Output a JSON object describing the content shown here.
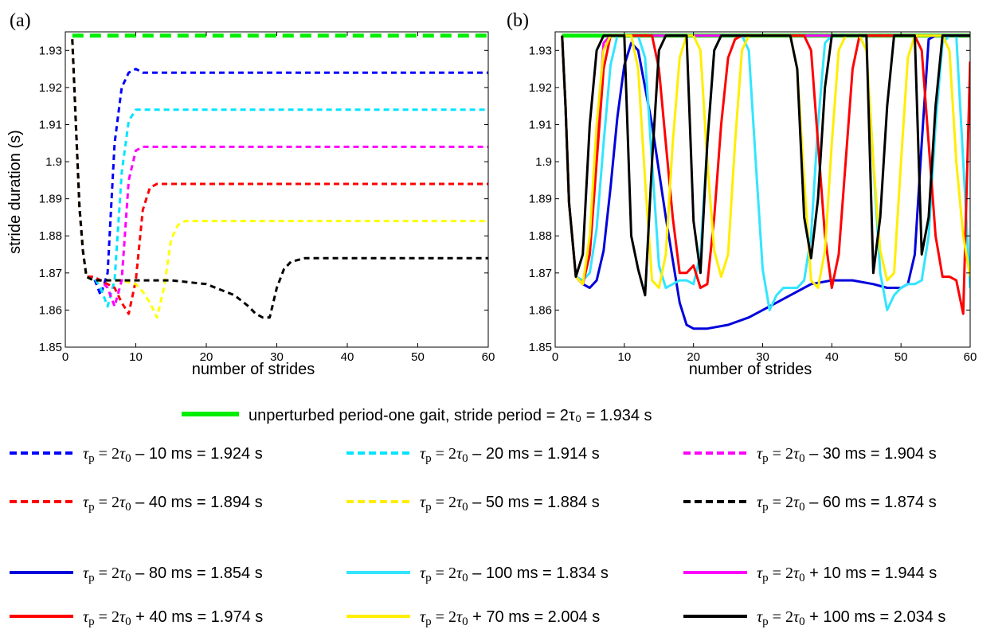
{
  "chart_data": [
    {
      "panel_label": "(a)",
      "type": "line",
      "xlabel": "number of strides",
      "ylabel": "stride duration (s)",
      "xlim": [
        0,
        60
      ],
      "ylim": [
        1.85,
        1.935
      ],
      "xticks": [
        0,
        10,
        20,
        30,
        40,
        50,
        60
      ],
      "yticks": [
        1.85,
        1.86,
        1.87,
        1.88,
        1.89,
        1.9,
        1.91,
        1.92,
        1.93
      ],
      "grid": false,
      "series": [
        {
          "name": "unperturbed period-one gait",
          "color": "#00ee00",
          "style": "dashed",
          "x": [
            1,
            60
          ],
          "y": [
            1.934,
            1.934
          ]
        },
        {
          "name": "τp = 2τ0 – 10 ms = 1.924 s",
          "color": "#0000ff",
          "style": "dashed",
          "x": [
            1,
            1.5,
            2,
            2.5,
            3,
            4,
            5,
            6,
            7,
            8,
            9,
            10,
            11,
            60
          ],
          "y": [
            1.933,
            1.91,
            1.888,
            1.876,
            1.869,
            1.869,
            1.864,
            1.87,
            1.905,
            1.92,
            1.924,
            1.925,
            1.924,
            1.924
          ]
        },
        {
          "name": "τp = 2τ0 – 20 ms = 1.914 s",
          "color": "#00e5ff",
          "style": "dashed",
          "x": [
            1,
            1.5,
            2,
            2.5,
            3,
            4,
            5,
            6,
            7,
            8,
            9,
            10,
            11,
            60
          ],
          "y": [
            1.933,
            1.91,
            1.888,
            1.876,
            1.869,
            1.869,
            1.866,
            1.861,
            1.868,
            1.897,
            1.911,
            1.914,
            1.914,
            1.914
          ]
        },
        {
          "name": "τp = 2τ0 – 30 ms = 1.904 s",
          "color": "#ff00ff",
          "style": "dashed",
          "x": [
            1,
            1.5,
            2,
            2.5,
            3,
            4,
            5,
            6,
            7,
            8,
            9,
            10,
            11,
            60
          ],
          "y": [
            1.933,
            1.91,
            1.888,
            1.876,
            1.869,
            1.869,
            1.868,
            1.866,
            1.861,
            1.868,
            1.895,
            1.903,
            1.904,
            1.904
          ]
        },
        {
          "name": "τp = 2τ0 – 40 ms = 1.894 s",
          "color": "#ff0000",
          "style": "dashed",
          "x": [
            1,
            1.5,
            2,
            2.5,
            3,
            4,
            5,
            6,
            7,
            8,
            9,
            10,
            11,
            12,
            13,
            60
          ],
          "y": [
            1.933,
            1.91,
            1.888,
            1.876,
            1.869,
            1.869,
            1.868,
            1.867,
            1.866,
            1.862,
            1.859,
            1.868,
            1.887,
            1.893,
            1.894,
            1.894
          ]
        },
        {
          "name": "τp = 2τ0 – 50 ms = 1.884 s",
          "color": "#ffff00",
          "style": "dashed",
          "x": [
            1,
            1.5,
            2,
            2.5,
            3,
            4,
            6,
            8,
            10,
            11,
            12,
            13,
            14,
            15,
            16,
            17,
            60
          ],
          "y": [
            1.933,
            1.91,
            1.888,
            1.876,
            1.869,
            1.868,
            1.868,
            1.868,
            1.867,
            1.865,
            1.862,
            1.858,
            1.866,
            1.879,
            1.883,
            1.884,
            1.884
          ]
        },
        {
          "name": "τp = 2τ0 – 60 ms = 1.874 s",
          "color": "#000000",
          "style": "dashed",
          "x": [
            1,
            1.5,
            2,
            2.5,
            3,
            4,
            8,
            15,
            20,
            24,
            26,
            27,
            28,
            29,
            30,
            31,
            32,
            34,
            60
          ],
          "y": [
            1.933,
            1.91,
            1.888,
            1.876,
            1.869,
            1.868,
            1.868,
            1.868,
            1.867,
            1.864,
            1.861,
            1.859,
            1.858,
            1.858,
            1.866,
            1.871,
            1.873,
            1.874,
            1.874
          ]
        }
      ]
    },
    {
      "panel_label": "(b)",
      "type": "line",
      "xlabel": "number of strides",
      "ylabel": "",
      "xlim": [
        0,
        60
      ],
      "ylim": [
        1.85,
        1.935
      ],
      "xticks": [
        0,
        10,
        20,
        30,
        40,
        50,
        60
      ],
      "yticks": [
        1.85,
        1.86,
        1.87,
        1.88,
        1.89,
        1.9,
        1.91,
        1.92,
        1.93
      ],
      "grid": false,
      "series": [
        {
          "name": "unperturbed period-one gait",
          "color": "#00ee00",
          "style": "solid",
          "x": [
            1,
            60
          ],
          "y": [
            1.934,
            1.934
          ]
        },
        {
          "name": "τp = 2τ0 – 80 ms = 1.854 s",
          "color": "#0000dd",
          "style": "solid",
          "x": [
            1,
            1.5,
            2,
            3,
            4,
            5,
            6,
            7,
            8,
            9,
            10,
            11,
            12,
            14,
            16,
            18,
            19,
            20,
            22,
            25,
            28,
            31,
            34,
            37,
            40,
            43,
            46,
            48,
            49,
            50,
            51,
            52,
            53,
            54,
            55,
            56,
            57,
            58,
            59,
            60
          ],
          "y": [
            1.934,
            1.915,
            1.889,
            1.869,
            1.867,
            1.866,
            1.868,
            1.876,
            1.893,
            1.912,
            1.926,
            1.932,
            1.93,
            1.91,
            1.885,
            1.862,
            1.856,
            1.855,
            1.855,
            1.856,
            1.858,
            1.861,
            1.864,
            1.867,
            1.868,
            1.868,
            1.867,
            1.866,
            1.866,
            1.866,
            1.867,
            1.875,
            1.905,
            1.933,
            1.934,
            1.934,
            1.934,
            1.934,
            1.934,
            1.934
          ]
        },
        {
          "name": "τp = 2τ0 – 100 ms = 1.834 s",
          "color": "#33e5ff",
          "style": "solid",
          "x": [
            1,
            1.5,
            2,
            3,
            4,
            5,
            6,
            7,
            8,
            9,
            10,
            11,
            12,
            13,
            14,
            15,
            16,
            17,
            18,
            19,
            20,
            21,
            22,
            23,
            24,
            25,
            26,
            27,
            28,
            29,
            30,
            31,
            32,
            33,
            34,
            35,
            36,
            37,
            38,
            39,
            40,
            41,
            42,
            43,
            44,
            45,
            46,
            47,
            48,
            49,
            50,
            51,
            52,
            53,
            54,
            55,
            56,
            57,
            58,
            59,
            60
          ],
          "y": [
            1.934,
            1.915,
            1.889,
            1.869,
            1.868,
            1.87,
            1.882,
            1.905,
            1.926,
            1.934,
            1.934,
            1.934,
            1.934,
            1.928,
            1.9,
            1.872,
            1.866,
            1.867,
            1.868,
            1.868,
            1.867,
            1.875,
            1.905,
            1.93,
            1.934,
            1.934,
            1.934,
            1.934,
            1.93,
            1.9,
            1.871,
            1.86,
            1.864,
            1.866,
            1.866,
            1.866,
            1.868,
            1.88,
            1.91,
            1.932,
            1.934,
            1.934,
            1.934,
            1.934,
            1.934,
            1.93,
            1.9,
            1.87,
            1.86,
            1.864,
            1.866,
            1.867,
            1.867,
            1.868,
            1.88,
            1.91,
            1.932,
            1.934,
            1.934,
            1.9,
            1.866
          ]
        },
        {
          "name": "τp = 2τ0 + 10 ms = 1.944 s",
          "color": "#ff00ff",
          "style": "solid",
          "x": [
            1,
            1.5,
            2,
            3,
            4,
            5,
            6,
            7,
            8,
            9,
            60
          ],
          "y": [
            1.934,
            1.915,
            1.889,
            1.869,
            1.867,
            1.875,
            1.905,
            1.932,
            1.934,
            1.934,
            1.934
          ]
        },
        {
          "name": "τp = 2τ0 + 40 ms = 1.974 s",
          "color": "#ff0000",
          "style": "solid",
          "x": [
            1,
            1.5,
            2,
            3,
            4,
            5,
            6,
            7,
            8,
            10,
            12,
            13,
            14,
            15,
            16,
            17,
            18,
            19,
            20,
            21,
            22,
            23,
            24,
            25,
            26,
            27,
            28,
            29,
            30,
            31,
            32,
            33,
            34,
            35,
            36,
            37,
            38,
            39,
            40,
            41,
            42,
            43,
            44,
            45,
            46,
            47,
            48,
            49,
            50,
            51,
            52,
            53,
            54,
            55,
            56,
            57,
            58,
            59,
            60
          ],
          "y": [
            1.934,
            1.915,
            1.889,
            1.869,
            1.867,
            1.875,
            1.9,
            1.925,
            1.934,
            1.934,
            1.934,
            1.934,
            1.934,
            1.925,
            1.905,
            1.885,
            1.87,
            1.87,
            1.872,
            1.866,
            1.867,
            1.885,
            1.91,
            1.928,
            1.933,
            1.934,
            1.934,
            1.934,
            1.934,
            1.934,
            1.934,
            1.934,
            1.934,
            1.934,
            1.934,
            1.93,
            1.905,
            1.88,
            1.866,
            1.875,
            1.9,
            1.925,
            1.934,
            1.934,
            1.934,
            1.934,
            1.934,
            1.934,
            1.934,
            1.934,
            1.934,
            1.93,
            1.905,
            1.88,
            1.869,
            1.869,
            1.868,
            1.859,
            1.927
          ]
        },
        {
          "name": "τp = 2τ0 + 70 ms = 2.004 s",
          "color": "#ffee00",
          "style": "solid",
          "x": [
            1,
            1.5,
            2,
            3,
            4,
            5,
            6,
            7,
            8,
            10,
            11,
            12,
            13,
            14,
            15,
            16,
            17,
            18,
            19,
            20,
            21,
            22,
            23,
            24,
            25,
            26,
            27,
            28,
            29,
            30,
            31,
            32,
            33,
            34,
            35,
            36,
            37,
            38,
            39,
            40,
            41,
            42,
            43,
            44,
            45,
            46,
            47,
            48,
            49,
            50,
            51,
            52,
            53,
            54,
            55,
            56,
            57,
            58,
            59,
            60
          ],
          "y": [
            1.934,
            1.915,
            1.889,
            1.869,
            1.867,
            1.88,
            1.91,
            1.93,
            1.934,
            1.934,
            1.934,
            1.925,
            1.895,
            1.868,
            1.866,
            1.875,
            1.905,
            1.928,
            1.934,
            1.934,
            1.93,
            1.9,
            1.876,
            1.869,
            1.875,
            1.905,
            1.93,
            1.934,
            1.934,
            1.934,
            1.934,
            1.934,
            1.934,
            1.934,
            1.925,
            1.895,
            1.868,
            1.866,
            1.876,
            1.905,
            1.93,
            1.934,
            1.934,
            1.934,
            1.93,
            1.9,
            1.876,
            1.868,
            1.87,
            1.9,
            1.928,
            1.934,
            1.934,
            1.934,
            1.934,
            1.934,
            1.93,
            1.9,
            1.88,
            1.869
          ]
        },
        {
          "name": "τp = 2τ0 + 100 ms = 2.034 s",
          "color": "#000000",
          "style": "solid",
          "x": [
            1,
            1.5,
            2,
            3,
            4,
            5,
            6,
            7,
            8,
            9,
            10,
            11,
            12,
            13,
            14,
            15,
            16,
            17,
            18,
            19,
            20,
            21,
            22,
            23,
            24,
            25,
            26,
            27,
            28,
            29,
            30,
            31,
            32,
            33,
            34,
            35,
            36,
            37,
            38,
            39,
            40,
            41,
            42,
            43,
            44,
            45,
            46,
            47,
            48,
            49,
            50,
            51,
            52,
            53,
            54,
            55,
            56,
            57,
            58,
            59,
            60
          ],
          "y": [
            1.934,
            1.915,
            1.889,
            1.869,
            1.875,
            1.91,
            1.93,
            1.934,
            1.934,
            1.934,
            1.934,
            1.88,
            1.871,
            1.864,
            1.9,
            1.93,
            1.934,
            1.934,
            1.934,
            1.934,
            1.884,
            1.87,
            1.905,
            1.93,
            1.934,
            1.934,
            1.934,
            1.934,
            1.934,
            1.934,
            1.934,
            1.934,
            1.934,
            1.934,
            1.934,
            1.925,
            1.885,
            1.874,
            1.89,
            1.92,
            1.934,
            1.934,
            1.934,
            1.934,
            1.934,
            1.934,
            1.87,
            1.885,
            1.915,
            1.934,
            1.934,
            1.934,
            1.934,
            1.875,
            1.885,
            1.915,
            1.934,
            1.934,
            1.934,
            1.934,
            1.934
          ]
        }
      ]
    }
  ],
  "legend": {
    "header": {
      "text": "unperturbed period-one gait, stride period = 2τ₀ = 1.934 s",
      "color": "#00ee00",
      "style": "solid"
    },
    "rows": [
      [
        {
          "text": "τp = 2τ0 – 10 ms = 1.924 s",
          "color": "#0000ff",
          "style": "dashed"
        },
        {
          "text": "τp = 2τ0 – 20 ms = 1.914 s",
          "color": "#00e5ff",
          "style": "dashed"
        },
        {
          "text": "τp = 2τ0 – 30 ms = 1.904 s",
          "color": "#ff00ff",
          "style": "dashed"
        }
      ],
      [
        {
          "text": "τp = 2τ0 – 40 ms = 1.894 s",
          "color": "#ff0000",
          "style": "dashed"
        },
        {
          "text": "τp = 2τ0 – 50 ms = 1.884 s",
          "color": "#ffee00",
          "style": "dashed"
        },
        {
          "text": "τp = 2τ0 – 60 ms = 1.874 s",
          "color": "#000000",
          "style": "dashed"
        }
      ],
      [
        {
          "text": "τp = 2τ0 – 80 ms = 1.854 s",
          "color": "#0000dd",
          "style": "solid"
        },
        {
          "text": "τp = 2τ0 – 100 ms = 1.834 s",
          "color": "#33e5ff",
          "style": "solid"
        },
        {
          "text": "τp = 2τ0 + 10 ms = 1.944 s",
          "color": "#ff00ff",
          "style": "solid"
        }
      ],
      [
        {
          "text": "τp = 2τ0 + 40 ms = 1.974 s",
          "color": "#ff0000",
          "style": "solid"
        },
        {
          "text": "τp = 2τ0 + 70 ms = 2.004 s",
          "color": "#ffee00",
          "style": "solid"
        },
        {
          "text": "τp = 2τ0 + 100 ms = 2.034 s",
          "color": "#000000",
          "style": "solid"
        }
      ]
    ]
  }
}
